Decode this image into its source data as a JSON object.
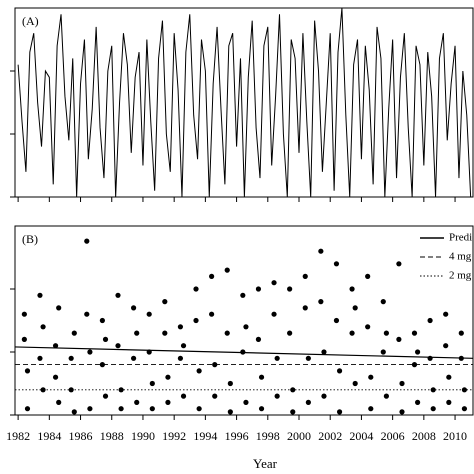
{
  "chart_data": [
    {
      "type": "line",
      "label": "(A)",
      "color": "#000000",
      "xlim": [
        1981.8,
        2011.15
      ],
      "ylim": [
        0,
        3
      ],
      "yticks": [
        0,
        1,
        2
      ],
      "xticks": [
        1982,
        1984,
        1986,
        1988,
        1990,
        1992,
        1994,
        1996,
        1998,
        2000,
        2002,
        2004,
        2006,
        2008,
        2010
      ],
      "x": [
        1982,
        1982.25,
        1982.5,
        1982.75,
        1983,
        1983.25,
        1983.5,
        1983.75,
        1984,
        1984.25,
        1984.5,
        1984.75,
        1985,
        1985.25,
        1985.5,
        1985.75,
        1986,
        1986.25,
        1986.5,
        1986.75,
        1987,
        1987.25,
        1987.5,
        1987.75,
        1988,
        1988.25,
        1988.5,
        1988.75,
        1989,
        1989.25,
        1989.5,
        1989.75,
        1990,
        1990.25,
        1990.5,
        1990.75,
        1991,
        1991.25,
        1991.5,
        1991.75,
        1992,
        1992.25,
        1992.5,
        1992.75,
        1993,
        1993.25,
        1993.5,
        1993.75,
        1994,
        1994.25,
        1994.5,
        1994.75,
        1995,
        1995.25,
        1995.5,
        1995.75,
        1996,
        1996.25,
        1996.5,
        1996.75,
        1997,
        1997.25,
        1997.5,
        1997.75,
        1998,
        1998.25,
        1998.5,
        1998.75,
        1999,
        1999.25,
        1999.5,
        1999.75,
        2000,
        2000.25,
        2000.5,
        2000.75,
        2001,
        2001.25,
        2001.5,
        2001.75,
        2002,
        2002.25,
        2002.5,
        2002.75,
        2003,
        2003.25,
        2003.5,
        2003.75,
        2004,
        2004.25,
        2004.5,
        2004.75,
        2005,
        2005.25,
        2005.5,
        2005.75,
        2006,
        2006.25,
        2006.5,
        2006.75,
        2007,
        2007.25,
        2007.5,
        2007.75,
        2008,
        2008.25,
        2008.5,
        2008.75,
        2009,
        2009.25,
        2009.5,
        2009.75,
        2010,
        2010.25,
        2010.5,
        2010.75,
        2011
      ],
      "values": [
        2.1,
        1.2,
        0.4,
        2.3,
        2.6,
        1.5,
        0.8,
        2.0,
        1.9,
        0.2,
        2.4,
        2.9,
        1.6,
        0.9,
        2.2,
        0.0,
        1.8,
        2.5,
        0.6,
        1.4,
        2.7,
        1.1,
        0.3,
        2.0,
        2.4,
        0.0,
        1.5,
        2.6,
        2.1,
        0.7,
        1.9,
        2.3,
        0.5,
        2.5,
        1.2,
        0.1,
        2.2,
        2.8,
        1.0,
        0.4,
        2.6,
        1.7,
        0.0,
        2.3,
        2.9,
        1.3,
        0.6,
        2.5,
        2.0,
        0.0,
        1.8,
        2.7,
        1.4,
        0.2,
        2.4,
        2.6,
        0.8,
        2.2,
        0.0,
        1.9,
        2.8,
        1.1,
        0.3,
        2.4,
        2.7,
        0.5,
        1.6,
        2.9,
        1.0,
        0.0,
        2.5,
        2.2,
        0.7,
        2.6,
        1.2,
        0.0,
        2.8,
        2.0,
        0.4,
        1.5,
        2.6,
        0.1,
        2.3,
        3.0,
        1.3,
        0.0,
        2.1,
        2.5,
        0.6,
        2.4,
        1.7,
        0.2,
        2.7,
        2.2,
        0.0,
        1.4,
        2.5,
        0.3,
        1.9,
        2.6,
        1.1,
        0.0,
        2.4,
        2.1,
        0.5,
        2.3,
        1.6,
        0.0,
        2.2,
        2.6,
        0.9,
        1.8,
        2.4,
        0.3,
        2.0,
        1.3,
        0.0
      ]
    },
    {
      "type": "scatter",
      "label": "(B)",
      "color": "#000000",
      "xlabel": "Year",
      "xlim": [
        1981.8,
        2011.15
      ],
      "ylim": [
        0,
        3
      ],
      "yticks": [
        0,
        1,
        2
      ],
      "xticks": [
        1982,
        1984,
        1986,
        1988,
        1990,
        1992,
        1994,
        1996,
        1998,
        2000,
        2002,
        2004,
        2006,
        2008,
        2010
      ],
      "x": [
        1982.4,
        1982.4,
        1982.6,
        1982.6,
        1983.4,
        1983.4,
        1983.6,
        1983.6,
        1984.4,
        1984.4,
        1984.6,
        1984.6,
        1985.4,
        1985.4,
        1985.6,
        1985.6,
        1986.4,
        1986.4,
        1986.6,
        1986.6,
        1987.4,
        1987.4,
        1987.6,
        1987.6,
        1988.4,
        1988.4,
        1988.6,
        1988.6,
        1989.4,
        1989.4,
        1989.6,
        1989.6,
        1990.4,
        1990.4,
        1990.6,
        1990.6,
        1991.4,
        1991.4,
        1991.6,
        1991.6,
        1992.4,
        1992.4,
        1992.6,
        1992.6,
        1993.4,
        1993.4,
        1993.6,
        1993.6,
        1994.4,
        1994.4,
        1994.6,
        1994.6,
        1995.4,
        1995.4,
        1995.6,
        1995.6,
        1996.4,
        1996.4,
        1996.6,
        1996.6,
        1997.4,
        1997.4,
        1997.6,
        1997.6,
        1998.4,
        1998.4,
        1998.6,
        1998.6,
        1999.4,
        1999.4,
        1999.6,
        1999.6,
        2000.4,
        2000.4,
        2000.6,
        2000.6,
        2001.4,
        2001.4,
        2001.6,
        2001.6,
        2002.4,
        2002.4,
        2002.6,
        2002.6,
        2003.4,
        2003.4,
        2003.6,
        2003.6,
        2004.4,
        2004.4,
        2004.6,
        2004.6,
        2005.4,
        2005.4,
        2005.6,
        2005.6,
        2006.4,
        2006.4,
        2006.6,
        2006.6,
        2007.4,
        2007.4,
        2007.6,
        2007.6,
        2008.4,
        2008.4,
        2008.6,
        2008.6,
        2009.4,
        2009.4,
        2009.6,
        2009.6,
        2010.4,
        2010.4,
        2010.6,
        2010.6
      ],
      "values": [
        1.6,
        1.2,
        0.7,
        0.1,
        1.9,
        0.9,
        0.4,
        1.4,
        1.1,
        0.6,
        0.2,
        1.7,
        0.9,
        0.4,
        0.05,
        1.3,
        2.76,
        1.6,
        1.0,
        0.1,
        1.5,
        0.8,
        0.3,
        1.2,
        1.9,
        1.1,
        0.4,
        0.1,
        1.7,
        0.9,
        0.2,
        1.3,
        1.6,
        1.0,
        0.5,
        0.1,
        1.8,
        1.3,
        0.6,
        0.2,
        1.4,
        0.9,
        0.3,
        1.1,
        2.0,
        1.5,
        0.7,
        0.1,
        2.2,
        1.6,
        0.8,
        0.3,
        2.3,
        1.3,
        0.5,
        0.05,
        1.9,
        1.0,
        0.2,
        1.4,
        2.0,
        1.2,
        0.6,
        0.1,
        2.1,
        1.6,
        0.9,
        0.3,
        2.0,
        1.3,
        0.4,
        0.05,
        2.2,
        1.7,
        0.9,
        0.2,
        2.6,
        1.8,
        1.0,
        0.3,
        2.4,
        1.5,
        0.7,
        0.05,
        2.0,
        1.3,
        0.5,
        1.7,
        2.2,
        1.4,
        0.6,
        0.1,
        1.8,
        1.0,
        0.3,
        1.3,
        2.4,
        1.2,
        0.5,
        0.05,
        1.3,
        0.8,
        0.2,
        1.0,
        1.5,
        0.9,
        0.4,
        0.1,
        1.6,
        1.1,
        0.6,
        0.2,
        1.3,
        0.9,
        0.4,
        0.1
      ],
      "lines": [
        {
          "name": "Predi",
          "dash": "solid",
          "x": [
            1981.8,
            2011.15
          ],
          "values": [
            1.08,
            0.9
          ]
        },
        {
          "name": "4 mg",
          "dash": "dashed",
          "x": [
            1981.8,
            2011.15
          ],
          "values": [
            0.8,
            0.8
          ]
        },
        {
          "name": "2 mg",
          "dash": "dotted",
          "x": [
            1981.8,
            2011.15
          ],
          "values": [
            0.4,
            0.4
          ]
        }
      ]
    }
  ]
}
